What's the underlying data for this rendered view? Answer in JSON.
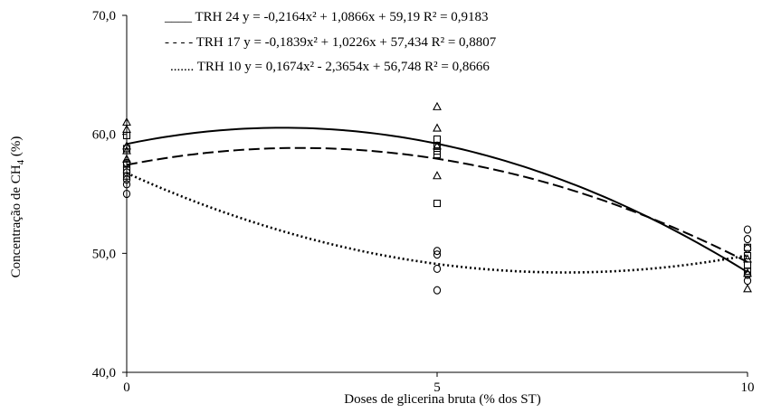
{
  "chart_data": {
    "type": "scatter",
    "xlabel": "Doses de glicerina bruta (% dos ST)",
    "ylabel": "Concentração de CH4 (%)",
    "ylabel_main": "Concentração de CH",
    "ylabel_sub": "4",
    "ylabel_tail": " (%)",
    "xlim": [
      0,
      10
    ],
    "ylim": [
      40,
      70
    ],
    "xticks": [
      0,
      5,
      10
    ],
    "xtick_labels": [
      "0",
      "5",
      "10"
    ],
    "yticks": [
      40,
      50,
      60,
      70
    ],
    "ytick_labels": [
      "40,0",
      "50,0",
      "60,0",
      "70,0"
    ],
    "grid": false,
    "legend_position": "top",
    "series": [
      {
        "name": "TRH 24",
        "legend_text": "____ TRH 24 y = -0,2164x² + 1,0866x + 59,19 R² = 0,9183",
        "line_style": "solid",
        "marker": "triangle",
        "fit": {
          "a": -0.2164,
          "b": 1.0866,
          "c": 59.19
        },
        "points": [
          {
            "x": 0,
            "y": 61.0
          },
          {
            "x": 0,
            "y": 60.4
          },
          {
            "x": 0,
            "y": 59.0
          },
          {
            "x": 0,
            "y": 58.6
          },
          {
            "x": 0,
            "y": 57.9
          },
          {
            "x": 5,
            "y": 62.3
          },
          {
            "x": 5,
            "y": 60.5
          },
          {
            "x": 5,
            "y": 59.0
          },
          {
            "x": 5,
            "y": 56.5
          },
          {
            "x": 10,
            "y": 49.5
          },
          {
            "x": 10,
            "y": 48.3
          },
          {
            "x": 10,
            "y": 47.0
          }
        ]
      },
      {
        "name": "TRH 17",
        "legend_text": "- - - - TRH 17 y = -0,1839x² + 1,0226x + 57,434   R² = 0,8807",
        "line_style": "dashed",
        "marker": "square",
        "fit": {
          "a": -0.1839,
          "b": 1.0226,
          "c": 57.434
        },
        "points": [
          {
            "x": 0,
            "y": 59.9
          },
          {
            "x": 0,
            "y": 58.8
          },
          {
            "x": 0,
            "y": 57.5
          },
          {
            "x": 0,
            "y": 57.0
          },
          {
            "x": 0,
            "y": 56.5
          },
          {
            "x": 5,
            "y": 59.6
          },
          {
            "x": 5,
            "y": 59.0
          },
          {
            "x": 5,
            "y": 58.6
          },
          {
            "x": 5,
            "y": 58.3
          },
          {
            "x": 5,
            "y": 54.2
          },
          {
            "x": 10,
            "y": 50.5
          },
          {
            "x": 10,
            "y": 49.8
          },
          {
            "x": 10,
            "y": 49.0
          },
          {
            "x": 10,
            "y": 48.5
          }
        ]
      },
      {
        "name": "TRH 10",
        "legend_text": "....... TRH 10 y = 0,1674x² - 2,3654x + 56,748 R² = 0,8666",
        "line_style": "dotted",
        "marker": "circle",
        "fit": {
          "a": 0.1674,
          "b": -2.3654,
          "c": 56.748
        },
        "points": [
          {
            "x": 0,
            "y": 57.6
          },
          {
            "x": 0,
            "y": 56.8
          },
          {
            "x": 0,
            "y": 56.2
          },
          {
            "x": 0,
            "y": 55.8
          },
          {
            "x": 0,
            "y": 55.0
          },
          {
            "x": 5,
            "y": 50.2
          },
          {
            "x": 5,
            "y": 49.9
          },
          {
            "x": 5,
            "y": 48.7
          },
          {
            "x": 5,
            "y": 46.9
          },
          {
            "x": 10,
            "y": 52.0
          },
          {
            "x": 10,
            "y": 51.2
          },
          {
            "x": 10,
            "y": 50.4
          },
          {
            "x": 10,
            "y": 48.2
          },
          {
            "x": 10,
            "y": 47.7
          }
        ]
      }
    ]
  }
}
